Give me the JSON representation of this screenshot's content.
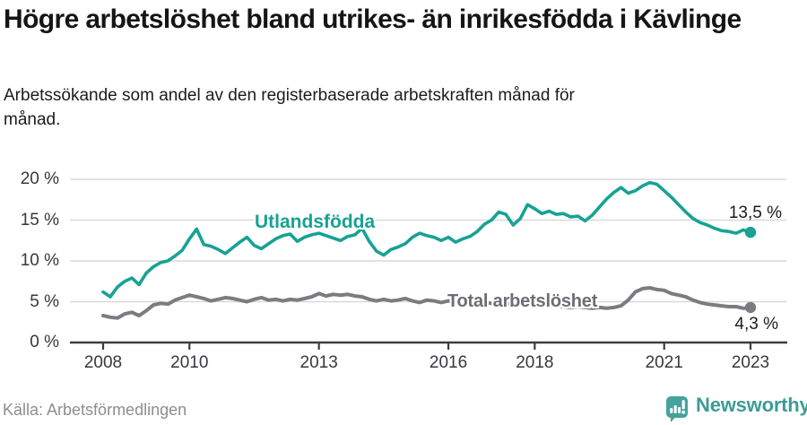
{
  "header": {
    "title": "Högre arbetslöshet bland utrikes- än inrikesfödda i Kävlinge",
    "subtitle": "Arbetssökande som andel av den registerbaserade arbetskraften månad för månad."
  },
  "chart_data": {
    "type": "line",
    "title": "Arbetssökande som andel av den registerbaserade arbetskraften",
    "x_unit": "year (monthly data sampled every 2 months)",
    "x_start": 2008,
    "x_step_years": 0.1667,
    "x_end": 2023,
    "ylim": [
      0,
      21
    ],
    "grid": "horizontal",
    "x_ticks": [
      "2008",
      "2010",
      "2013",
      "2016",
      "2018",
      "2021",
      "2023"
    ],
    "x_tick_years": [
      2008,
      2010,
      2013,
      2016,
      2018,
      2021,
      2023
    ],
    "y_ticks": [
      {
        "value": 20,
        "label": "20 %"
      },
      {
        "value": 15,
        "label": "15 %"
      },
      {
        "value": 10,
        "label": "10 %"
      },
      {
        "value": 5,
        "label": "5 %"
      },
      {
        "value": 0,
        "label": "0 %"
      }
    ],
    "series": [
      {
        "name": "Utlandsfödda",
        "color": "#17a294",
        "end_label": "13,5 %",
        "end_value": 13.5,
        "values": [
          6.2,
          5.6,
          6.8,
          7.5,
          7.9,
          7.1,
          8.5,
          9.3,
          9.8,
          10.0,
          10.6,
          11.3,
          12.7,
          13.9,
          12.0,
          11.8,
          11.4,
          10.9,
          11.6,
          12.3,
          12.9,
          11.9,
          11.5,
          12.1,
          12.7,
          13.1,
          13.3,
          12.4,
          12.9,
          13.2,
          13.4,
          13.1,
          12.8,
          12.5,
          13.0,
          13.2,
          14.0,
          12.4,
          11.2,
          10.7,
          11.4,
          11.7,
          12.1,
          12.9,
          13.4,
          13.1,
          12.9,
          12.5,
          12.9,
          12.3,
          12.7,
          13.0,
          13.6,
          14.5,
          15.0,
          16.0,
          15.7,
          14.4,
          15.2,
          16.9,
          16.4,
          15.8,
          16.1,
          15.7,
          15.8,
          15.4,
          15.5,
          14.9,
          15.6,
          16.6,
          17.6,
          18.4,
          19.0,
          18.3,
          18.6,
          19.2,
          19.6,
          19.4,
          18.6,
          17.8,
          16.9,
          16.0,
          15.2,
          14.7,
          14.4,
          14.0,
          13.7,
          13.6,
          13.4,
          13.8,
          13.5
        ]
      },
      {
        "name": "Total arbetslöshet",
        "color": "#7b7b81",
        "end_label": "4,3 %",
        "end_value": 4.3,
        "values": [
          3.3,
          3.1,
          3.0,
          3.5,
          3.7,
          3.3,
          3.9,
          4.6,
          4.8,
          4.7,
          5.2,
          5.5,
          5.8,
          5.6,
          5.4,
          5.1,
          5.3,
          5.5,
          5.4,
          5.2,
          5.0,
          5.3,
          5.5,
          5.2,
          5.3,
          5.1,
          5.3,
          5.2,
          5.4,
          5.6,
          6.0,
          5.7,
          5.9,
          5.8,
          5.9,
          5.7,
          5.6,
          5.3,
          5.1,
          5.3,
          5.1,
          5.2,
          5.4,
          5.1,
          4.9,
          5.2,
          5.1,
          4.9,
          5.1,
          5.0,
          4.9,
          5.0,
          4.8,
          4.9,
          4.8,
          4.7,
          4.8,
          4.6,
          4.7,
          4.6,
          4.5,
          4.6,
          4.4,
          4.5,
          4.4,
          4.3,
          4.4,
          4.3,
          4.2,
          4.3,
          4.2,
          4.3,
          4.5,
          5.2,
          6.2,
          6.6,
          6.7,
          6.5,
          6.4,
          6.0,
          5.8,
          5.6,
          5.2,
          4.9,
          4.7,
          4.6,
          4.5,
          4.4,
          4.4,
          4.2,
          4.3
        ]
      }
    ],
    "colors": {
      "grid": "#d9d9d9",
      "axis": "#3d3d3d",
      "tick_text": "#38383d"
    }
  },
  "footer": {
    "source": "Källa: Arbetsförmedlingen",
    "brand": "Newsworthy",
    "brand_color": "#3b9d95",
    "brand_icon_color": "#44a39c"
  }
}
